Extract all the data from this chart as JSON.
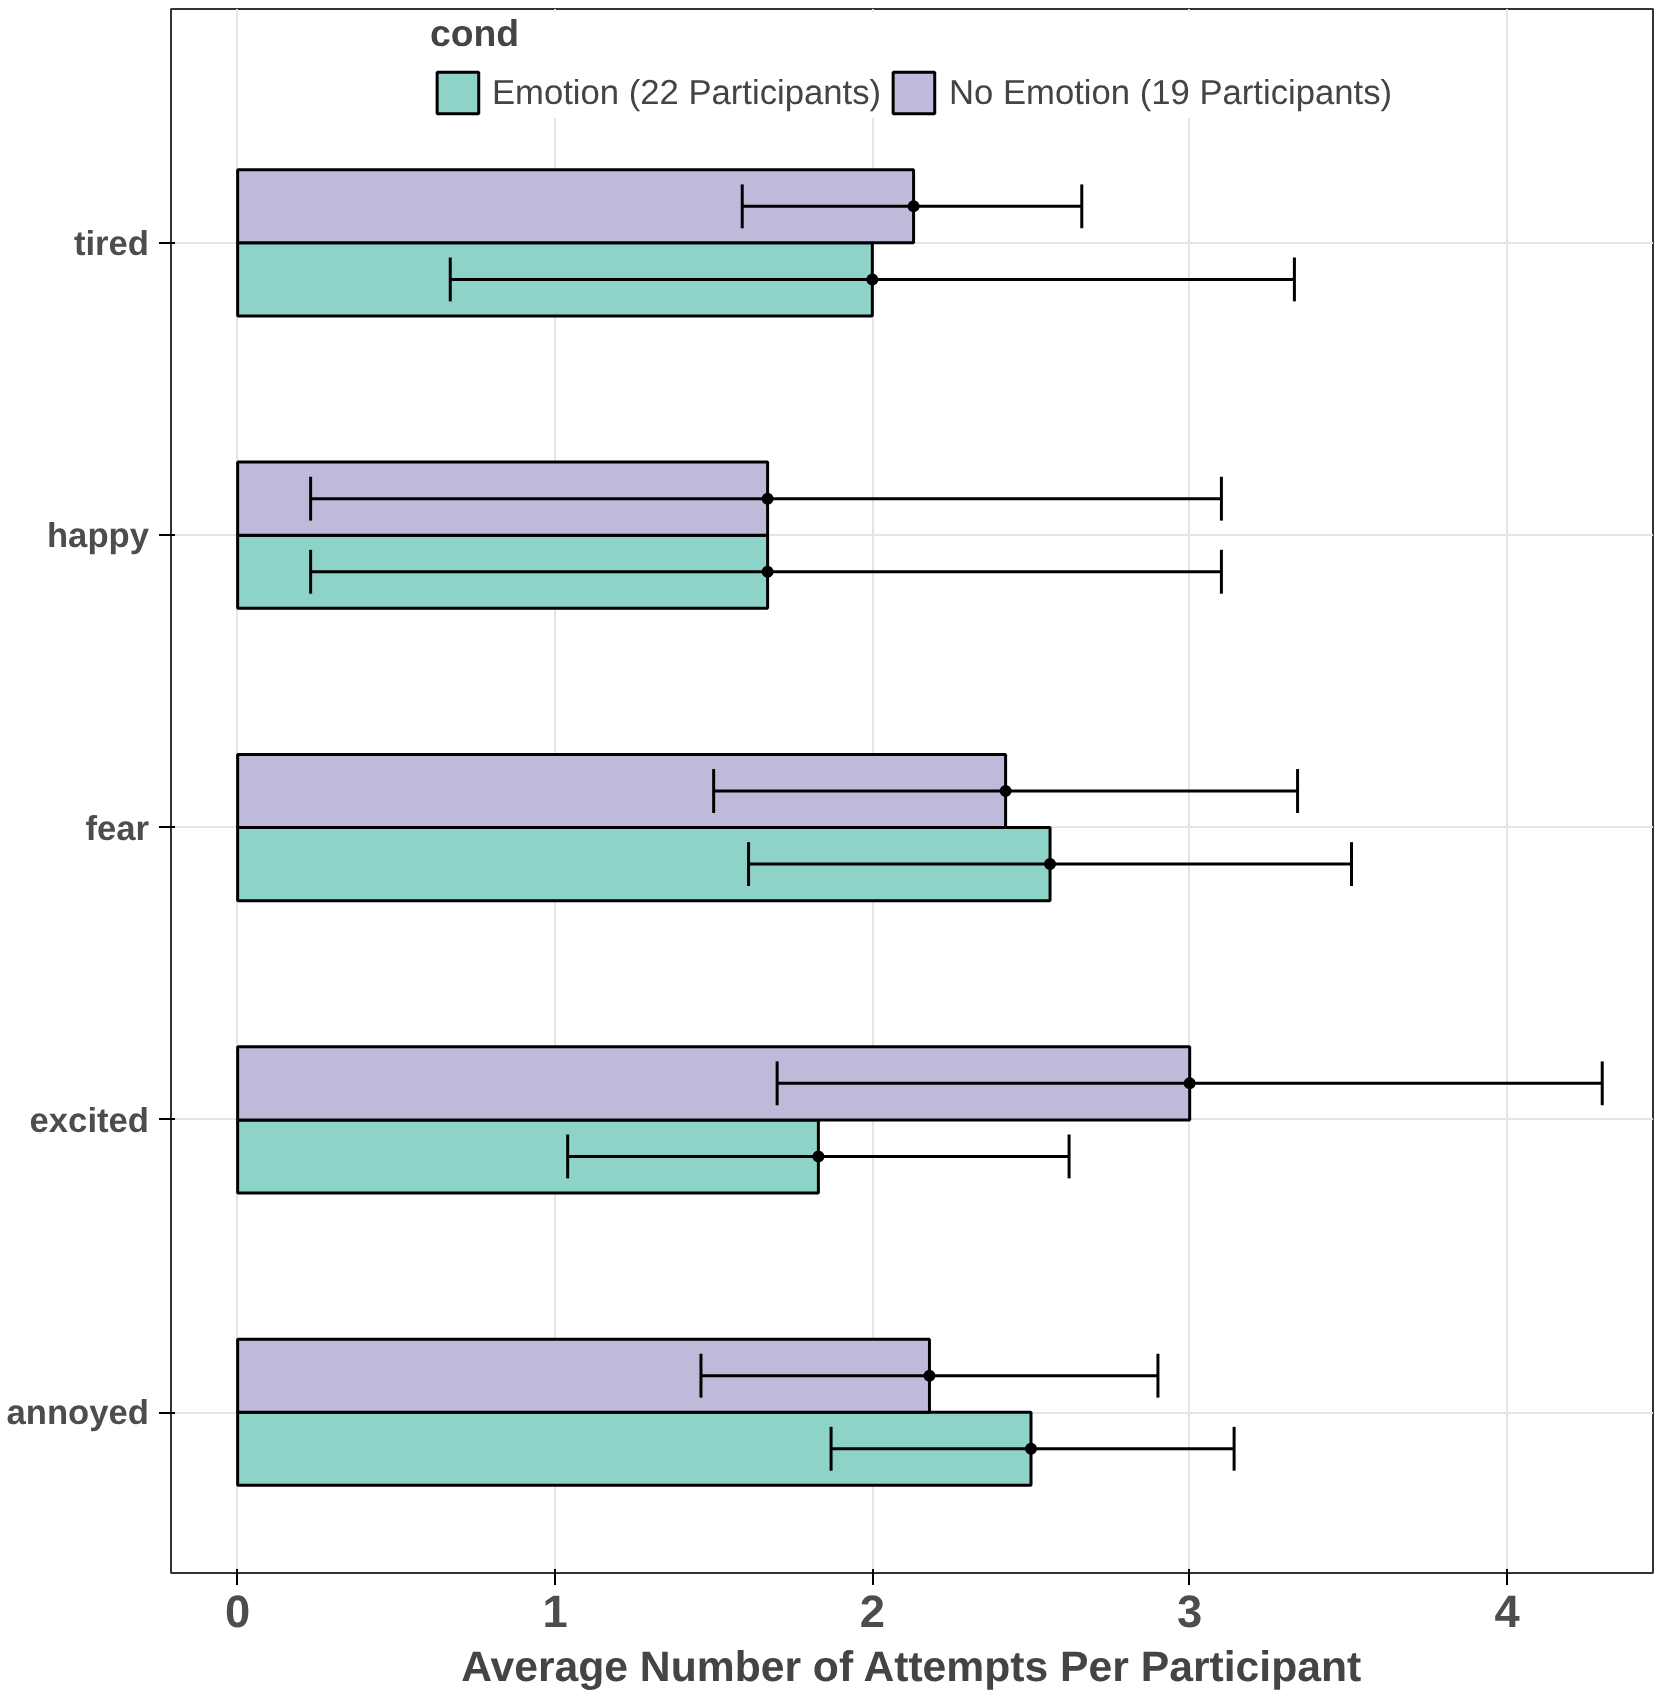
{
  "chart_data": {
    "type": "bar",
    "orientation": "horizontal",
    "xlabel": "Average Number of Attempts Per Participant",
    "legend_title": "cond",
    "categories": [
      "tired",
      "happy",
      "fear",
      "excited",
      "annoyed"
    ],
    "series": [
      {
        "name": "Emotion (22 Participants)",
        "color": "#8dd3c7",
        "values": [
          2.0,
          1.67,
          2.56,
          1.83,
          2.5
        ],
        "errors": [
          [
            0.67,
            3.33
          ],
          [
            0.23,
            3.1
          ],
          [
            1.61,
            3.51
          ],
          [
            1.04,
            2.62
          ],
          [
            1.87,
            3.14
          ]
        ]
      },
      {
        "name": "No Emotion (19 Participants)",
        "color": "#bebada",
        "values": [
          2.13,
          1.67,
          2.42,
          3.0,
          2.18
        ],
        "errors": [
          [
            1.59,
            2.66
          ],
          [
            0.23,
            3.1
          ],
          [
            1.5,
            3.34
          ],
          [
            1.7,
            4.3
          ],
          [
            1.46,
            2.9
          ]
        ]
      },
      {
        "type": "scatter",
        "color": "#000000",
        "x": [
          "tired",
          "happy",
          "fear",
          "excited",
          "annoyed"
        ],
        "values": [
          2.0,
          1.67,
          2.56,
          1.83,
          2.5
        ]
      },
      {
        "type": "scatter",
        "color": "#000000",
        "x": [
          "tired",
          "happy",
          "fear",
          "excited",
          "annoyed"
        ],
        "values": [
          2.13,
          1.67,
          2.42,
          3.0,
          2.18
        ]
      }
    ],
    "xlim": [
      -0.21,
      4.46
    ],
    "xticks": [
      0,
      1,
      2,
      3,
      4
    ],
    "grid": true,
    "marker": "circle",
    "legend": "top"
  }
}
